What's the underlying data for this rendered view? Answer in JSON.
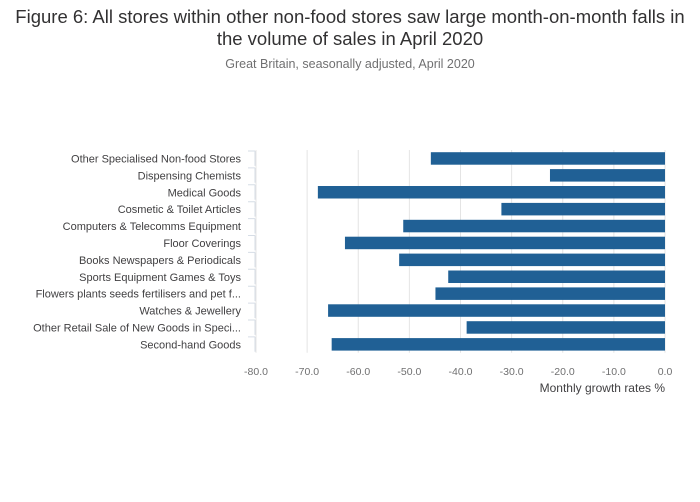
{
  "chart_data": {
    "type": "bar",
    "orientation": "horizontal",
    "title": "Figure 6: All stores within other non-food stores saw large month-on-month falls in the volume of sales in April 2020",
    "subtitle": "Great Britain, seasonally adjusted, April 2020",
    "xlabel": "Monthly growth rates %",
    "ylabel": "",
    "xlim": [
      -80,
      0
    ],
    "x_ticks": [
      "-80.0",
      "-70.0",
      "-60.0",
      "-50.0",
      "-40.0",
      "-30.0",
      "-20.0",
      "-10.0",
      "0.0"
    ],
    "grid": true,
    "color": "#206095",
    "categories": [
      "Other Specialised Non-food Stores",
      "Dispensing Chemists",
      "Medical Goods",
      "Cosmetic & Toilet Articles",
      "Computers & Telecomms Equipment",
      "Floor Coverings",
      "Books Newspapers & Periodicals",
      "Sports Equipment Games & Toys",
      "Flowers plants seeds fertilisers and pet f...",
      "Watches & Jewellery",
      "Other Retail Sale of New Goods in Speci...",
      "Second-hand Goods"
    ],
    "values": [
      -45.8,
      -22.5,
      -67.9,
      -32.0,
      -51.2,
      -62.6,
      -52.0,
      -42.4,
      -44.9,
      -65.9,
      -38.8,
      -65.2
    ]
  }
}
